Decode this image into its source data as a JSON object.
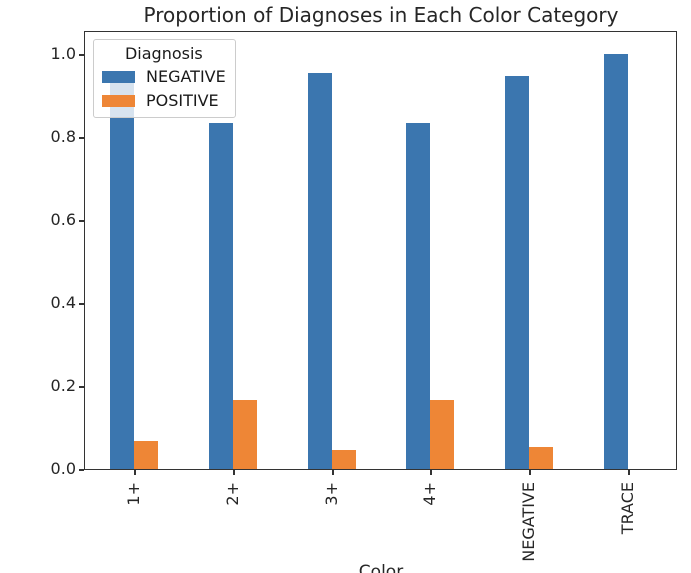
{
  "figure": {
    "background": "#ffffff",
    "axis_color": "#333333",
    "text_color": "#262626"
  },
  "chart_data": {
    "type": "bar",
    "title": "Proportion of Diagnoses in Each Color Category",
    "xlabel": "Color",
    "ylabel": "",
    "categories": [
      "1+",
      "2+",
      "3+",
      "4+",
      "NEGATIVE",
      "TRACE"
    ],
    "series": [
      {
        "name": "NEGATIVE",
        "color": "#3B76AF",
        "values": [
          0.932,
          0.833,
          0.955,
          0.833,
          0.947,
          1.0
        ]
      },
      {
        "name": "POSITIVE",
        "color": "#EE8636",
        "values": [
          0.068,
          0.167,
          0.045,
          0.167,
          0.053,
          0.0
        ]
      }
    ],
    "yticks": [
      0.0,
      0.2,
      0.4,
      0.6,
      0.8,
      1.0
    ],
    "ytick_labels": [
      "0.0",
      "0.2",
      "0.4",
      "0.6",
      "0.8",
      "1.0"
    ],
    "ylim": [
      0.0,
      1.055
    ],
    "grid": false,
    "legend": {
      "title": "Diagnosis",
      "position": "upper left",
      "entries": [
        "NEGATIVE",
        "POSITIVE"
      ]
    }
  }
}
